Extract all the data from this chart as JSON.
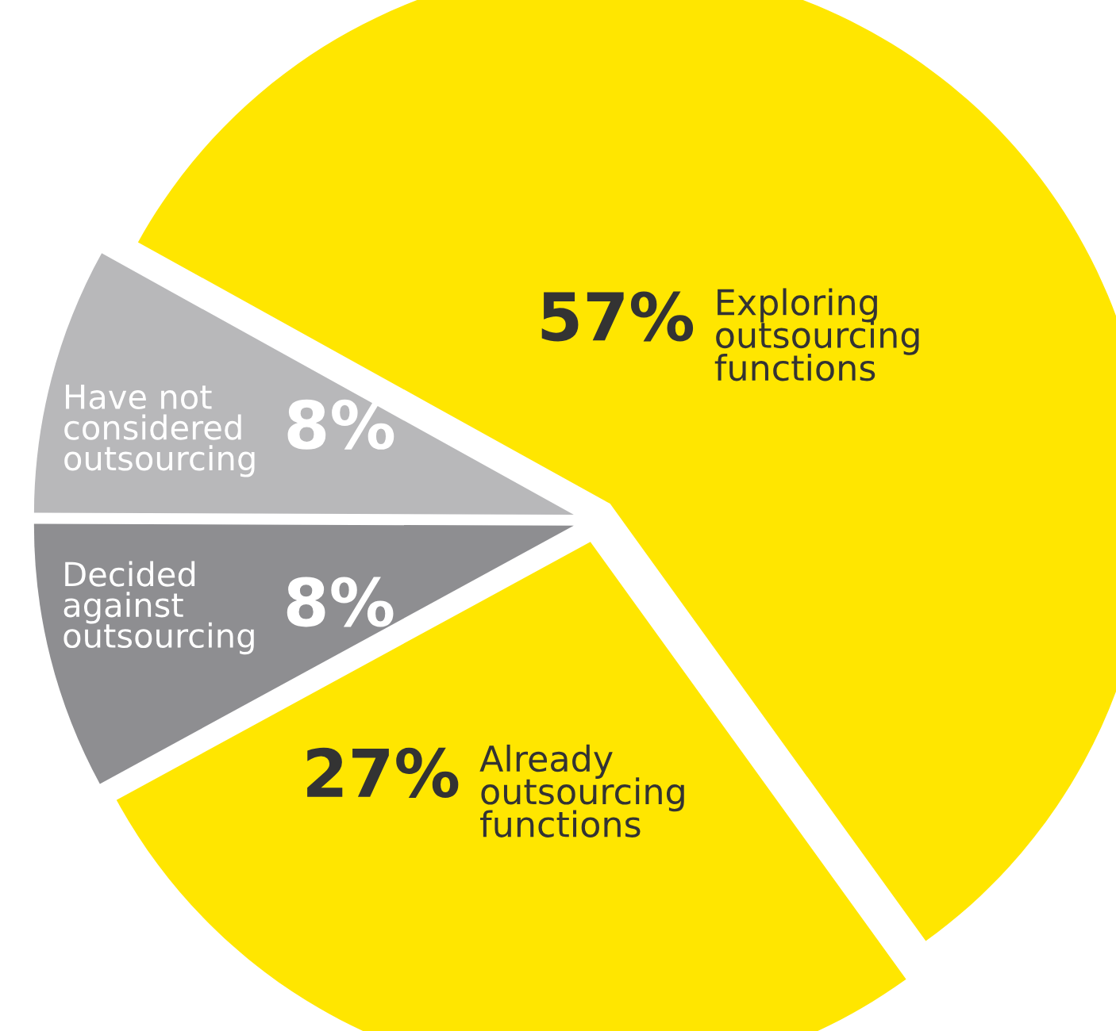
{
  "chart_data": {
    "type": "pie",
    "categories": [
      "Exploring\noutsourcing\nfunctions",
      "Already\noutsourcing\nfunctions",
      "Decided\nagainst\noutsourcing",
      "Have not\nconsidered\noutsourcing"
    ],
    "values": [
      57,
      27,
      8,
      8
    ],
    "colors": [
      "#ffe600",
      "#ffe600",
      "#8e8e91",
      "#b8b8ba"
    ],
    "value_labels": [
      "57%",
      "27%",
      "8%",
      "8%"
    ],
    "legend": false
  }
}
